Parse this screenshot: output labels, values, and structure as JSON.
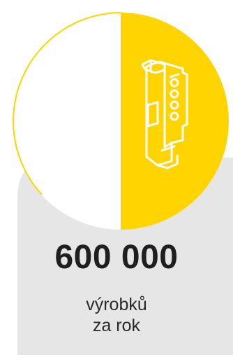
{
  "stat": {
    "value": "600 000",
    "caption_line1": "výrobků",
    "caption_line2": "za rok"
  },
  "icon": "din-rail-device-icon",
  "colors": {
    "accent": "#ffd400",
    "circle_outline": "#ffd400",
    "card_bg": "#e6e6e6",
    "text": "#1f1f1f",
    "background": "#ffffff"
  }
}
